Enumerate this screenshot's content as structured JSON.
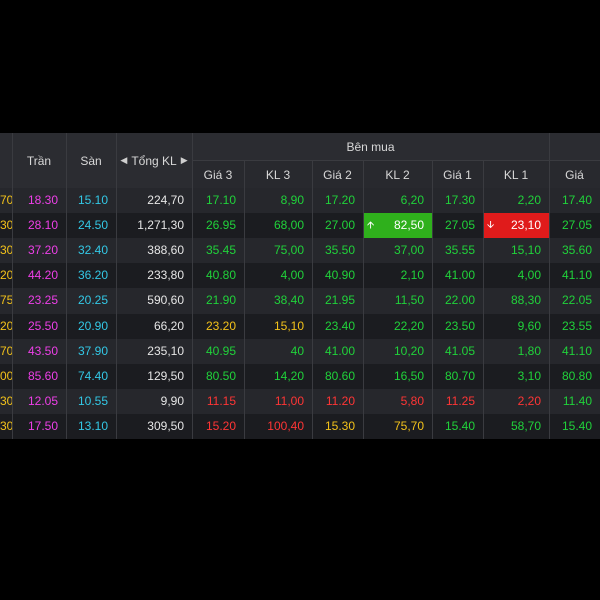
{
  "header": {
    "tran": "Trần",
    "san": "Sàn",
    "tong_kl": "Tổng KL",
    "tong_kl_left_arrow": "◀",
    "tong_kl_right_arrow": "▶",
    "ben_mua": "Bên mua",
    "gia3": "Giá 3",
    "kl3": "KL 3",
    "gia2": "Giá 2",
    "kl2": "KL 2",
    "gia1": "Giá 1",
    "kl1": "KL 1",
    "gia_next": "Giá"
  },
  "colors": {
    "ceiling": "#ee3fe8",
    "floor": "#33c8e6",
    "reference": "#f3c21a",
    "up": "#20d23a",
    "down": "#ff3535",
    "highlight_up": "#2fb01c",
    "highlight_down": "#e01b1b"
  },
  "rows": [
    {
      "ref_frag": "70",
      "ref_cls": "c-ref",
      "tran": "18.30",
      "san": "15.10",
      "tong": "224,70",
      "g3": "17.10",
      "g3c": "c-up",
      "k3": "8,90",
      "k3c": "c-up",
      "g2": "17.20",
      "g2c": "c-up",
      "k2": "6,20",
      "k2c": "c-up",
      "g1": "17.30",
      "g1c": "c-up",
      "k1": "2,20",
      "k1c": "c-up",
      "gn": "17.40",
      "gnc": "c-up"
    },
    {
      "ref_frag": "30",
      "ref_cls": "c-ref",
      "tran": "28.10",
      "san": "24.50",
      "tong": "1,271,30",
      "g3": "26.95",
      "g3c": "c-up",
      "k3": "68,00",
      "k3c": "c-up",
      "g2": "27.00",
      "g2c": "c-up",
      "k2": "82,50",
      "k2c": "hl-up",
      "k2arrow": "🡩",
      "g1": "27.05",
      "g1c": "c-up",
      "k1": "23,10",
      "k1c": "hl-down",
      "k1arrow": "🡫",
      "gn": "27.05",
      "gnc": "c-up"
    },
    {
      "ref_frag": "30",
      "ref_cls": "c-ref",
      "tran": "37.20",
      "san": "32.40",
      "tong": "388,60",
      "g3": "35.45",
      "g3c": "c-up",
      "k3": "75,00",
      "k3c": "c-up",
      "g2": "35.50",
      "g2c": "c-up",
      "k2": "37,00",
      "k2c": "c-up",
      "g1": "35.55",
      "g1c": "c-up",
      "k1": "15,10",
      "k1c": "c-up",
      "gn": "35.60",
      "gnc": "c-up"
    },
    {
      "ref_frag": "20",
      "ref_cls": "c-ref",
      "tran": "44.20",
      "san": "36.20",
      "tong": "233,80",
      "g3": "40.80",
      "g3c": "c-up",
      "k3": "4,00",
      "k3c": "c-up",
      "g2": "40.90",
      "g2c": "c-up",
      "k2": "2,10",
      "k2c": "c-up",
      "g1": "41.00",
      "g1c": "c-up",
      "k1": "4,00",
      "k1c": "c-up",
      "gn": "41.10",
      "gnc": "c-up"
    },
    {
      "ref_frag": "75",
      "ref_cls": "c-ref",
      "tran": "23.25",
      "san": "20.25",
      "tong": "590,60",
      "g3": "21.90",
      "g3c": "c-up",
      "k3": "38,40",
      "k3c": "c-up",
      "g2": "21.95",
      "g2c": "c-up",
      "k2": "11,50",
      "k2c": "c-up",
      "g1": "22.00",
      "g1c": "c-up",
      "k1": "88,30",
      "k1c": "c-up",
      "gn": "22.05",
      "gnc": "c-up"
    },
    {
      "ref_frag": "20",
      "ref_cls": "c-ref",
      "tran": "25.50",
      "san": "20.90",
      "tong": "66,20",
      "g3": "23.20",
      "g3c": "c-ref",
      "k3": "15,10",
      "k3c": "c-ref",
      "g2": "23.40",
      "g2c": "c-up",
      "k2": "22,20",
      "k2c": "c-up",
      "g1": "23.50",
      "g1c": "c-up",
      "k1": "9,60",
      "k1c": "c-up",
      "gn": "23.55",
      "gnc": "c-up"
    },
    {
      "ref_frag": "70",
      "ref_cls": "c-ref",
      "tran": "43.50",
      "san": "37.90",
      "tong": "235,10",
      "g3": "40.95",
      "g3c": "c-up",
      "k3": "40",
      "k3c": "c-up",
      "g2": "41.00",
      "g2c": "c-up",
      "k2": "10,20",
      "k2c": "c-up",
      "g1": "41.05",
      "g1c": "c-up",
      "k1": "1,80",
      "k1c": "c-up",
      "gn": "41.10",
      "gnc": "c-up"
    },
    {
      "ref_frag": "00",
      "ref_cls": "c-ref",
      "tran": "85.60",
      "san": "74.40",
      "tong": "129,50",
      "g3": "80.50",
      "g3c": "c-up",
      "k3": "14,20",
      "k3c": "c-up",
      "g2": "80.60",
      "g2c": "c-up",
      "k2": "16,50",
      "k2c": "c-up",
      "g1": "80.70",
      "g1c": "c-up",
      "k1": "3,10",
      "k1c": "c-up",
      "gn": "80.80",
      "gnc": "c-up"
    },
    {
      "ref_frag": "30",
      "ref_cls": "c-ref",
      "tran": "12.05",
      "san": "10.55",
      "tong": "9,90",
      "g3": "11.15",
      "g3c": "c-down",
      "k3": "11,00",
      "k3c": "c-down",
      "g2": "11.20",
      "g2c": "c-down",
      "k2": "5,80",
      "k2c": "c-down",
      "g1": "11.25",
      "g1c": "c-down",
      "k1": "2,20",
      "k1c": "c-down",
      "gn": "11.40",
      "gnc": "c-up"
    },
    {
      "ref_frag": "30",
      "ref_cls": "c-ref",
      "tran": "17.50",
      "san": "13.10",
      "tong": "309,50",
      "g3": "15.20",
      "g3c": "c-down",
      "k3": "100,40",
      "k3c": "c-down",
      "g2": "15.30",
      "g2c": "c-ref",
      "k2": "75,70",
      "k2c": "c-ref",
      "g1": "15.40",
      "g1c": "c-up",
      "k1": "58,70",
      "k1c": "c-up",
      "gn": "15.40",
      "gnc": "c-up"
    }
  ]
}
